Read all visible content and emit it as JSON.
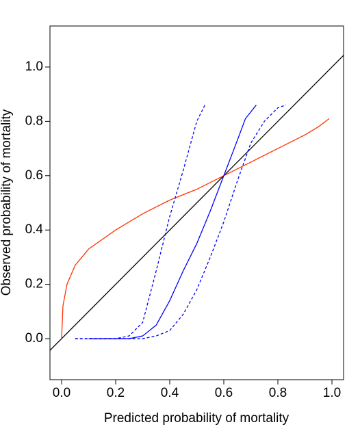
{
  "chart_data": {
    "type": "line",
    "x_label": "Predicted probability of mortality",
    "y_label": "Observed probability of mortality",
    "xlim": [
      -0.043,
      1.043
    ],
    "ylim": [
      -0.151,
      1.151
    ],
    "xticks": [
      {
        "value": 0,
        "label": "0.0"
      },
      0.2,
      0.4,
      0.6,
      0.8,
      {
        "value": 1,
        "label": "1.0"
      }
    ],
    "yticks": [
      {
        "value": 0,
        "label": "0.0"
      },
      0.2,
      0.4,
      0.6,
      0.8,
      {
        "value": 1,
        "label": "1.0"
      }
    ],
    "grid": false,
    "series": [
      {
        "color": "#000000",
        "dashed": false,
        "x": [
          -0.043,
          1.043
        ],
        "values": [
          -0.043,
          1.043
        ]
      },
      {
        "color": "#ff3300",
        "dashed": false,
        "x": [
          0,
          0.005,
          0.02,
          0.05,
          0.1,
          0.2,
          0.3,
          0.4,
          0.5,
          0.6,
          0.7,
          0.8,
          0.9,
          0.95,
          0.99
        ],
        "values": [
          0,
          0.12,
          0.2,
          0.27,
          0.33,
          0.4,
          0.46,
          0.51,
          0.55,
          0.6,
          0.65,
          0.7,
          0.75,
          0.78,
          0.81
        ]
      },
      {
        "color": "#0000ff",
        "dashed": false,
        "x": [
          0.1,
          0.25,
          0.3,
          0.35,
          0.4,
          0.45,
          0.5,
          0.55,
          0.6,
          0.65,
          0.68,
          0.72
        ],
        "values": [
          0,
          0,
          0.01,
          0.05,
          0.14,
          0.25,
          0.35,
          0.47,
          0.6,
          0.73,
          0.81,
          0.86
        ]
      },
      {
        "color": "#0000ff",
        "dashed": true,
        "x": [
          0.05,
          0.2,
          0.25,
          0.3,
          0.35,
          0.4,
          0.45,
          0.5,
          0.53
        ],
        "values": [
          0,
          0,
          0.01,
          0.06,
          0.25,
          0.45,
          0.62,
          0.8,
          0.86
        ]
      },
      {
        "color": "#0000ff",
        "dashed": true,
        "x": [
          0.05,
          0.3,
          0.35,
          0.4,
          0.45,
          0.5,
          0.55,
          0.6,
          0.65,
          0.7,
          0.75,
          0.8,
          0.83
        ],
        "values": [
          0,
          0,
          0.01,
          0.03,
          0.09,
          0.18,
          0.3,
          0.43,
          0.58,
          0.72,
          0.8,
          0.85,
          0.86
        ]
      }
    ]
  }
}
